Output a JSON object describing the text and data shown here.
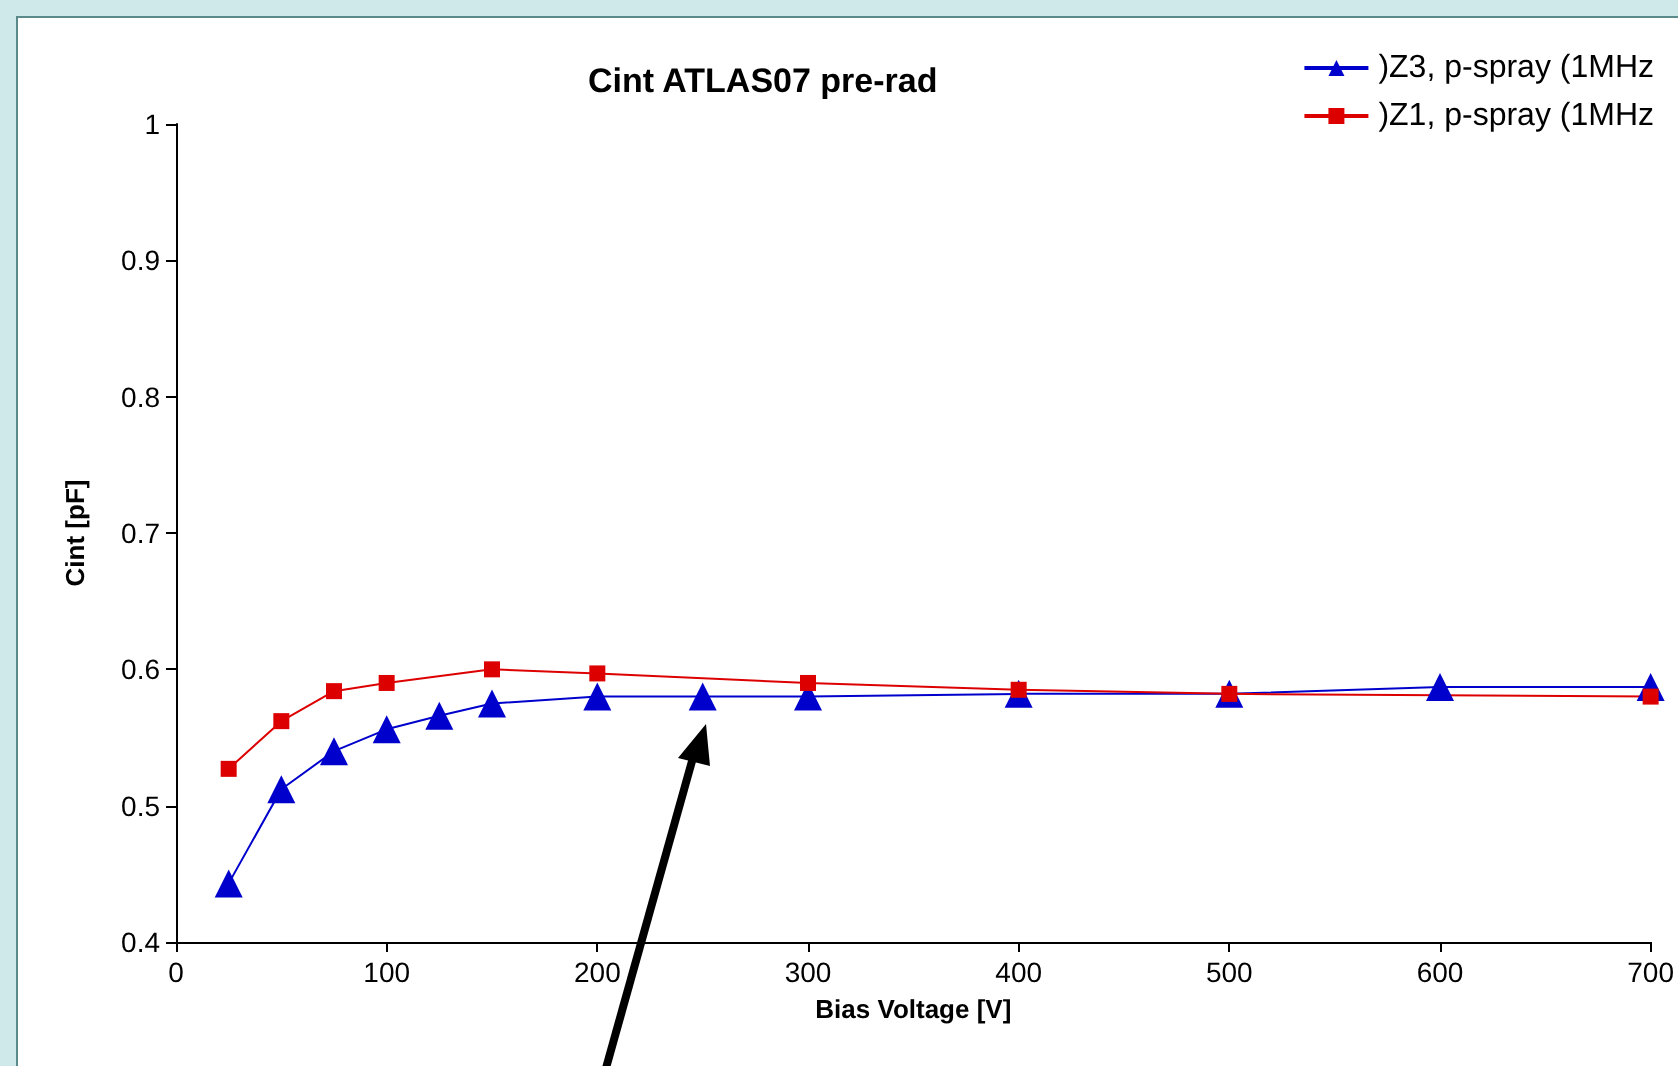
{
  "chart_data": {
    "type": "line",
    "title": "Cint ATLAS07 pre-rad",
    "xlabel": "Bias Voltage [V]",
    "ylabel": "Cint [pF]",
    "xlim": [
      0,
      700
    ],
    "xticks": [
      0,
      100,
      200,
      300,
      400,
      500,
      600,
      700
    ],
    "ylim": [
      0.4,
      1
    ],
    "yticks": [
      0.4,
      0.5,
      0.6,
      0.7,
      0.8,
      0.9,
      1
    ],
    "grid": false,
    "legend": "top right",
    "series": [
      {
        "name": ")Z3, p-spray (1MHz",
        "color": "#0000cc",
        "marker": "triangle",
        "x": [
          25,
          50,
          75,
          100,
          125,
          150,
          200,
          250,
          300,
          400,
          500,
          600,
          700
        ],
        "values": [
          0.443,
          0.512,
          0.54,
          0.556,
          0.566,
          0.575,
          0.58,
          0.58,
          0.58,
          0.582,
          0.582,
          0.587,
          0.587
        ]
      },
      {
        "name": ")Z1, p-spray (1MHz",
        "color": "#dd0000",
        "marker": "square",
        "x": [
          25,
          50,
          75,
          100,
          150,
          200,
          300,
          400,
          500,
          700
        ],
        "values": [
          0.527,
          0.562,
          0.584,
          0.59,
          0.6,
          0.597,
          0.59,
          0.585,
          0.582,
          0.58
        ]
      }
    ]
  }
}
